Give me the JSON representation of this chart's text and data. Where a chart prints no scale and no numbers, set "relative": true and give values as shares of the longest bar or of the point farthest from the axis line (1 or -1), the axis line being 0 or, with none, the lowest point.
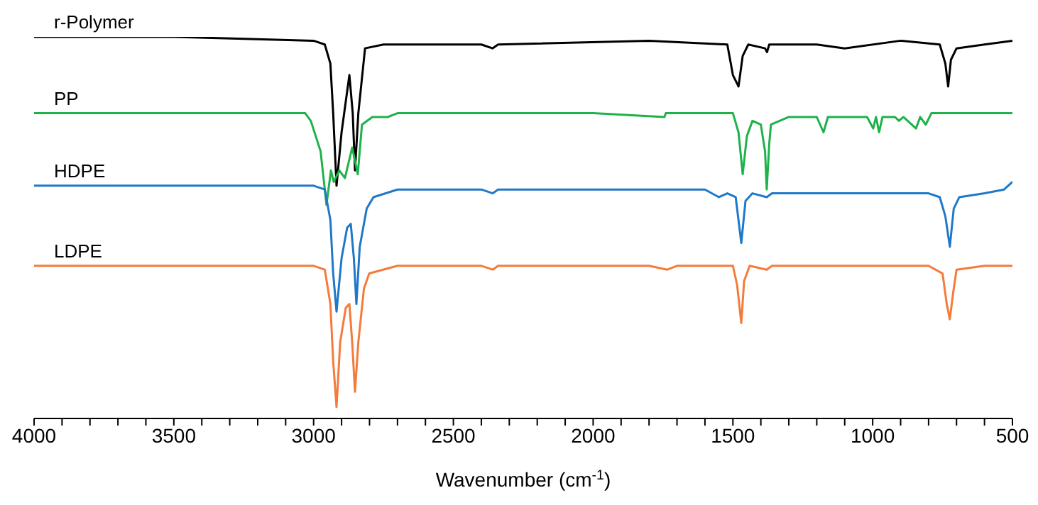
{
  "chart_data": {
    "type": "line",
    "relative": true,
    "xlabel": "Wavenumber  (cm$^{-1}$)",
    "xlim": [
      4000,
      500
    ],
    "xticks": [
      4000,
      {
        "value": 3900,
        "label": null
      },
      {
        "value": 3800,
        "label": null
      },
      {
        "value": 3700,
        "label": null
      },
      {
        "value": 3600,
        "label": null
      },
      3500,
      {
        "value": 3400,
        "label": null
      },
      {
        "value": 3300,
        "label": null
      },
      {
        "value": 3200,
        "label": null
      },
      {
        "value": 3100,
        "label": null
      },
      3000,
      {
        "value": 2900,
        "label": null
      },
      {
        "value": 2800,
        "label": null
      },
      {
        "value": 2700,
        "label": null
      },
      {
        "value": 2600,
        "label": null
      },
      2500,
      {
        "value": 2400,
        "label": null
      },
      {
        "value": 2300,
        "label": null
      },
      {
        "value": 2200,
        "label": null
      },
      {
        "value": 2100,
        "label": null
      },
      2000,
      {
        "value": 1900,
        "label": null
      },
      {
        "value": 1800,
        "label": null
      },
      {
        "value": 1700,
        "label": null
      },
      {
        "value": 1600,
        "label": null
      },
      1500,
      {
        "value": 1400,
        "label": null
      },
      {
        "value": 1300,
        "label": null
      },
      {
        "value": 1200,
        "label": null
      },
      {
        "value": 1100,
        "label": null
      },
      1000,
      {
        "value": 900,
        "label": null
      },
      {
        "value": 800,
        "label": null
      },
      {
        "value": 700,
        "label": null
      },
      {
        "value": 600,
        "label": null
      },
      500
    ],
    "series": [
      {
        "name": "r-Polymer",
        "color": "#000000",
        "x": [
          4000,
          3500,
          3000,
          2960,
          2940,
          2930,
          2918,
          2900,
          2872,
          2860,
          2852,
          2840,
          2816,
          2750,
          2400,
          2360,
          2340,
          1800,
          1520,
          1500,
          1480,
          1465,
          1445,
          1385,
          1378,
          1370,
          1200,
          1100,
          900,
          760,
          740,
          730,
          720,
          700,
          600,
          500
        ],
        "values": [
          1.0,
          1.0,
          0.99,
          0.98,
          0.93,
          0.8,
          0.61,
          0.75,
          0.9,
          0.8,
          0.65,
          0.8,
          0.97,
          0.98,
          0.98,
          0.97,
          0.98,
          0.99,
          0.98,
          0.9,
          0.87,
          0.95,
          0.98,
          0.97,
          0.96,
          0.98,
          0.98,
          0.97,
          0.99,
          0.98,
          0.93,
          0.87,
          0.94,
          0.97,
          0.98,
          0.99
        ]
      },
      {
        "name": "PP",
        "color": "#1fb14a",
        "x": [
          4000,
          3500,
          3030,
          3010,
          2975,
          2954,
          2938,
          2928,
          2908,
          2888,
          2862,
          2842,
          2827,
          2790,
          2735,
          2700,
          2000,
          1745,
          1740,
          1500,
          1480,
          1465,
          1450,
          1430,
          1400,
          1385,
          1379,
          1370,
          1364,
          1300,
          1200,
          1176,
          1160,
          1020,
          998,
          988,
          977,
          965,
          920,
          906,
          890,
          845,
          830,
          810,
          790,
          500
        ],
        "values": [
          0.8,
          0.8,
          0.8,
          0.78,
          0.7,
          0.56,
          0.65,
          0.62,
          0.65,
          0.63,
          0.71,
          0.64,
          0.77,
          0.79,
          0.79,
          0.8,
          0.8,
          0.79,
          0.8,
          0.8,
          0.75,
          0.64,
          0.74,
          0.78,
          0.77,
          0.7,
          0.6,
          0.72,
          0.77,
          0.79,
          0.79,
          0.75,
          0.79,
          0.79,
          0.76,
          0.79,
          0.75,
          0.79,
          0.79,
          0.78,
          0.79,
          0.76,
          0.79,
          0.77,
          0.8,
          0.8
        ]
      },
      {
        "name": "HDPE",
        "color": "#1f78c8",
        "x": [
          4000,
          3500,
          3000,
          2960,
          2940,
          2930,
          2918,
          2900,
          2880,
          2867,
          2856,
          2847,
          2835,
          2810,
          2786,
          2700,
          2400,
          2359,
          2340,
          1600,
          1550,
          1520,
          1490,
          1470,
          1455,
          1430,
          1379,
          1360,
          1100,
          800,
          760,
          740,
          724,
          710,
          690,
          600,
          530,
          500
        ],
        "values": [
          0.61,
          0.61,
          0.61,
          0.6,
          0.52,
          0.38,
          0.28,
          0.42,
          0.5,
          0.51,
          0.42,
          0.3,
          0.45,
          0.55,
          0.58,
          0.6,
          0.6,
          0.59,
          0.6,
          0.6,
          0.58,
          0.59,
          0.58,
          0.46,
          0.57,
          0.59,
          0.58,
          0.59,
          0.59,
          0.59,
          0.58,
          0.53,
          0.45,
          0.55,
          0.58,
          0.59,
          0.6,
          0.62
        ]
      },
      {
        "name": "LDPE",
        "color": "#f47b3a",
        "x": [
          4000,
          3500,
          3000,
          2960,
          2940,
          2930,
          2918,
          2905,
          2885,
          2872,
          2862,
          2852,
          2840,
          2820,
          2801,
          2700,
          2400,
          2359,
          2340,
          1800,
          1735,
          1700,
          1500,
          1485,
          1470,
          1460,
          1440,
          1379,
          1360,
          800,
          750,
          735,
          724,
          712,
          700,
          600,
          500
        ],
        "values": [
          0.4,
          0.4,
          0.4,
          0.39,
          0.3,
          0.15,
          0.03,
          0.2,
          0.29,
          0.3,
          0.2,
          0.07,
          0.2,
          0.34,
          0.38,
          0.4,
          0.4,
          0.39,
          0.4,
          0.4,
          0.39,
          0.4,
          0.4,
          0.35,
          0.25,
          0.36,
          0.4,
          0.39,
          0.4,
          0.4,
          0.38,
          0.3,
          0.26,
          0.33,
          0.39,
          0.4,
          0.4
        ]
      }
    ]
  }
}
